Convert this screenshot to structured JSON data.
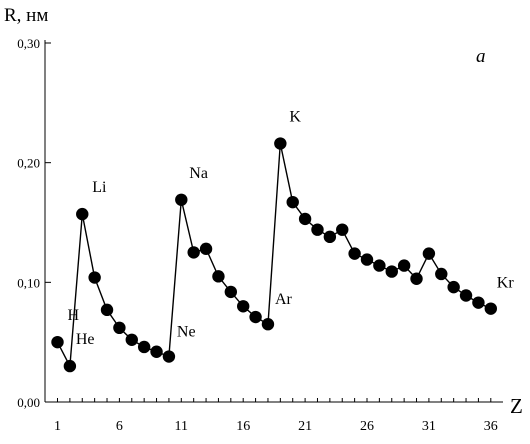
{
  "chart_data": {
    "type": "line",
    "panel_label": "а",
    "ylabel": "R, нм",
    "xlabel": "Z",
    "ylim": [
      0,
      0.3
    ],
    "yticks": [
      {
        "value": 0.0,
        "label": "0,00"
      },
      {
        "value": 0.1,
        "label": "0,10"
      },
      {
        "value": 0.2,
        "label": "0,20"
      },
      {
        "value": 0.3,
        "label": "0,30"
      }
    ],
    "xlim": [
      0,
      37
    ],
    "xtick_labels": [
      {
        "value": 1,
        "label": "1"
      },
      {
        "value": 6,
        "label": "6"
      },
      {
        "value": 11,
        "label": "11"
      },
      {
        "value": 16,
        "label": "16"
      },
      {
        "value": 21,
        "label": "21"
      },
      {
        "value": 26,
        "label": "26"
      },
      {
        "value": 31,
        "label": "31"
      },
      {
        "value": 36,
        "label": "36"
      }
    ],
    "x": [
      1,
      2,
      3,
      4,
      5,
      6,
      7,
      8,
      9,
      10,
      11,
      12,
      13,
      14,
      15,
      16,
      17,
      18,
      19,
      20,
      21,
      22,
      23,
      24,
      25,
      26,
      27,
      28,
      29,
      30,
      31,
      32,
      33,
      34,
      35,
      36
    ],
    "y": [
      0.05,
      0.03,
      0.157,
      0.104,
      0.077,
      0.062,
      0.052,
      0.046,
      0.042,
      0.038,
      0.169,
      0.125,
      0.128,
      0.105,
      0.092,
      0.08,
      0.071,
      0.065,
      0.216,
      0.167,
      0.153,
      0.144,
      0.138,
      0.144,
      0.124,
      0.119,
      0.114,
      0.109,
      0.114,
      0.103,
      0.124,
      0.107,
      0.096,
      0.089,
      0.083,
      0.078
    ],
    "annotations": [
      {
        "x": 1,
        "label": "H"
      },
      {
        "x": 2,
        "label": "He"
      },
      {
        "x": 3,
        "label": "Li"
      },
      {
        "x": 10,
        "label": "Ne"
      },
      {
        "x": 11,
        "label": "Na"
      },
      {
        "x": 18,
        "label": "Ar"
      },
      {
        "x": 19,
        "label": "K"
      },
      {
        "x": 36,
        "label": "Kr"
      }
    ]
  }
}
